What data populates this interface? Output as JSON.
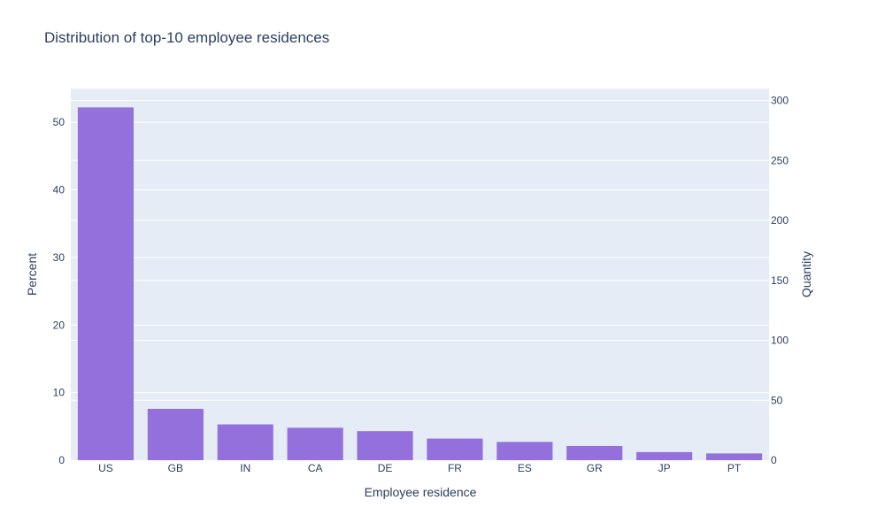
{
  "chart_data": {
    "type": "bar",
    "title": "Distribution of top-10 employee residences",
    "xlabel": "Employee residence",
    "ylabel": "Percent",
    "y2label": "Quantity",
    "categories": [
      "US",
      "GB",
      "IN",
      "CA",
      "DE",
      "FR",
      "ES",
      "GR",
      "JP",
      "PT"
    ],
    "series": [
      {
        "values": [
          52.2,
          7.6,
          5.3,
          4.8,
          4.3,
          3.2,
          2.7,
          2.1,
          1.2,
          1.0
        ]
      }
    ],
    "ylim": [
      0,
      55
    ],
    "y2lim": [
      0,
      310
    ],
    "yticks": [
      0,
      10,
      20,
      30,
      40,
      50
    ],
    "y2ticks": [
      0,
      50,
      100,
      150,
      200,
      250,
      300
    ],
    "grid": true,
    "colors": {
      "bar": "#9370db",
      "plot_bg": "#e5ecf6",
      "grid": "#ffffff",
      "text": "#2a3f5f"
    }
  }
}
